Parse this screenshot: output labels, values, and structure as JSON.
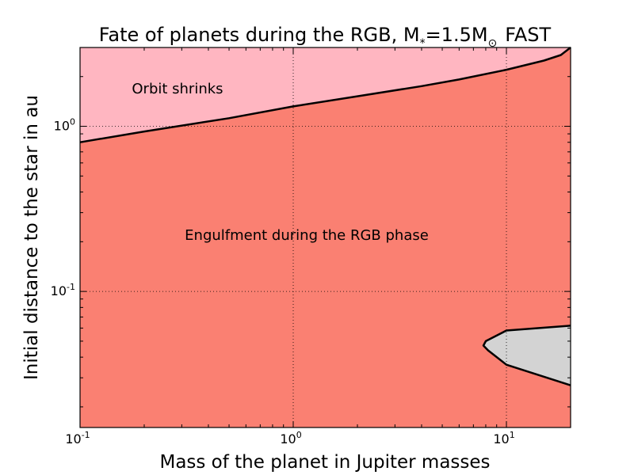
{
  "chart_data": {
    "type": "area",
    "title": {
      "prefix": "Fate of planets during the RGB, M",
      "star_sub": "*",
      "mass_eq": "=1.5M",
      "sun_sub": "⊙",
      "suffix": "FAST"
    },
    "xlabel": "Mass of the planet in Jupiter masses",
    "ylabel": "Initial distance to the star in au",
    "x_scale": "log",
    "y_scale": "log",
    "xlim": [
      0.1,
      20
    ],
    "ylim": [
      0.015,
      3.0
    ],
    "grid": true,
    "x_ticks": [
      {
        "value": 0.1,
        "base": "10",
        "exp": "-1"
      },
      {
        "value": 1,
        "base": "10",
        "exp": "0"
      },
      {
        "value": 10,
        "base": "10",
        "exp": "1"
      }
    ],
    "y_ticks": [
      {
        "value": 0.1,
        "base": "10",
        "exp": "-1"
      },
      {
        "value": 1,
        "base": "10",
        "exp": "0"
      }
    ],
    "regions": [
      {
        "name": "Orbit shrinks",
        "color": "#ffb6c1",
        "label_at": [
          0.175,
          1.58
        ]
      },
      {
        "name": "Engulfment during the RGB phase",
        "color": "#fa8072",
        "label_at": [
          0.31,
          0.205
        ]
      },
      {
        "name": "",
        "color": "#d3d3d3"
      }
    ],
    "boundary_upper": {
      "x": [
        0.1,
        0.2,
        0.5,
        1,
        2,
        4,
        6,
        10,
        15,
        18,
        20
      ],
      "y": [
        0.8,
        0.93,
        1.12,
        1.32,
        1.52,
        1.75,
        1.92,
        2.2,
        2.5,
        2.7,
        3.0
      ]
    },
    "grey_region": {
      "x": [
        20,
        10,
        8,
        7.8,
        8.2,
        10,
        20
      ],
      "y": [
        0.062,
        0.058,
        0.05,
        0.047,
        0.044,
        0.036,
        0.027
      ]
    },
    "colors": {
      "frame": "#000000",
      "boundary": "#000000"
    }
  }
}
